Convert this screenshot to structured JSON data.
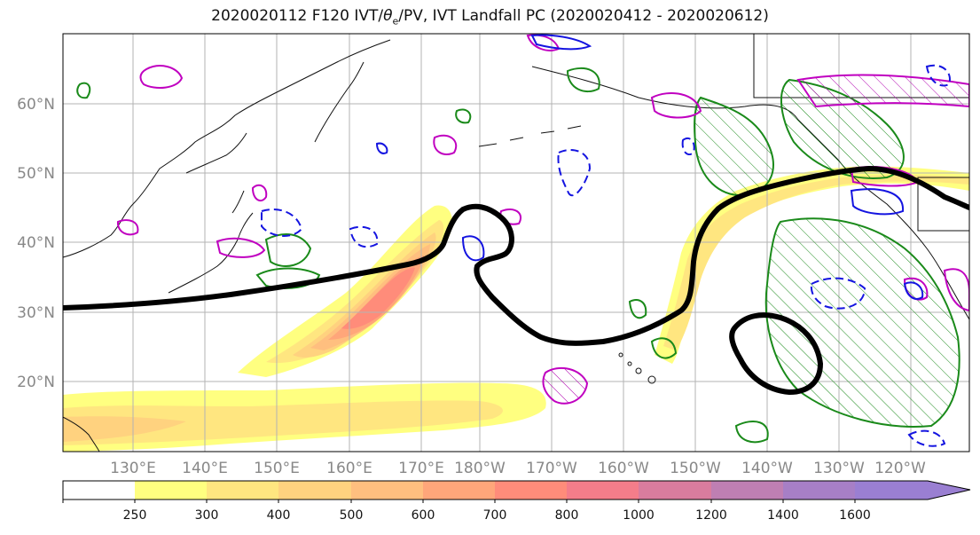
{
  "title": {
    "prefix": "2020020112 F120 IVT/",
    "theta": "θ",
    "theta_sub": "e",
    "suffix": "/PV, IVT Landfall PC (2020020412 - 2020020612)"
  },
  "map": {
    "lat_labels": [
      "60°N",
      "50°N",
      "40°N",
      "30°N",
      "20°N"
    ],
    "lon_labels": [
      "130°E",
      "140°E",
      "150°E",
      "160°E",
      "170°E",
      "180°W",
      "170°W",
      "160°W",
      "150°W",
      "140°W",
      "130°W",
      "120°W"
    ]
  },
  "colorbar": {
    "labels": [
      "250",
      "300",
      "400",
      "500",
      "600",
      "700",
      "800",
      "1000",
      "1200",
      "1400",
      "1600"
    ],
    "colors": [
      "#ffff80",
      "#ffe680",
      "#ffd27f",
      "#ffbf7f",
      "#ffa67a",
      "#ff8c7a",
      "#f47d8a",
      "#d97c9e",
      "#bf7fb3",
      "#a77fc6"
    ],
    "extend_color": "#9a7fd2"
  },
  "chart_data": {
    "type": "map",
    "projection": "equirectangular",
    "lon_range": [
      "120°E",
      "110°W"
    ],
    "lat_range": [
      "10°N",
      "70°N"
    ],
    "field": "IVT",
    "levels": [
      250,
      300,
      400,
      500,
      600,
      700,
      800,
      1000,
      1200,
      1400,
      1600
    ],
    "features": [
      "IVT plume from ~145°E 20°N to ~180° 45°N, max > 800 near 170°E 35°N",
      "IVT plume from ~150°W 25°N to ~125°W 50°N",
      "black landfall contour around IVT plumes; closed loop near 140°W 23°N"
    ]
  }
}
